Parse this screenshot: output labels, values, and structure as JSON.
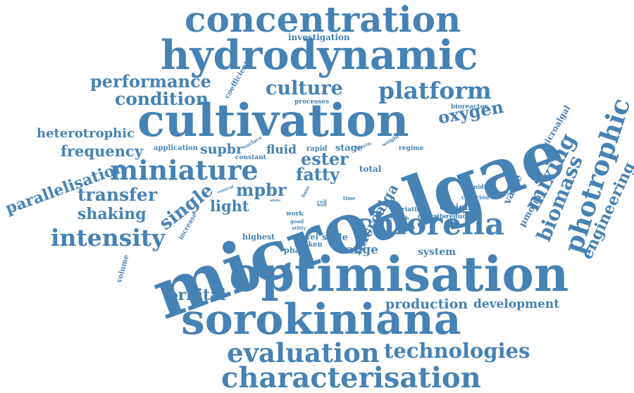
{
  "colors": {
    "word": "#4682b4",
    "background": "#ffffff"
  },
  "words": [
    "concentration",
    "hydrodynamic",
    "investigation",
    "performance",
    "coefficient",
    "culture",
    "platform",
    "condition",
    "processes",
    "bioreactor",
    "cultivation",
    "oxygen",
    "microalgal",
    "photrophic",
    "heterotrophic",
    "microalgae",
    "frequency",
    "application",
    "supbr",
    "surface",
    "fluid",
    "rapid",
    "stage",
    "kinetic",
    "weight",
    "regime",
    "constant",
    "ester",
    "total",
    "miniature",
    "mixing",
    "biomass",
    "engineering",
    "parallelisation",
    "fatty",
    "value",
    "control",
    "base",
    "mpbr",
    "transfer",
    "humidity",
    "single",
    "μmolm",
    "criterion",
    "time",
    "cell",
    "well",
    "white",
    "shaking",
    "light",
    "design",
    "work",
    "good",
    "utility",
    "variation",
    "length",
    "describe",
    "reduction",
    "increase",
    "intensity",
    "chlorella",
    "novel",
    "highest",
    "phase",
    "shaken",
    "scale",
    "range",
    "system",
    "volume",
    "microalga",
    "optimisation",
    "orbital",
    "production",
    "development",
    "sorokiniana",
    "evaluation",
    "technologies",
    "characterisation"
  ]
}
